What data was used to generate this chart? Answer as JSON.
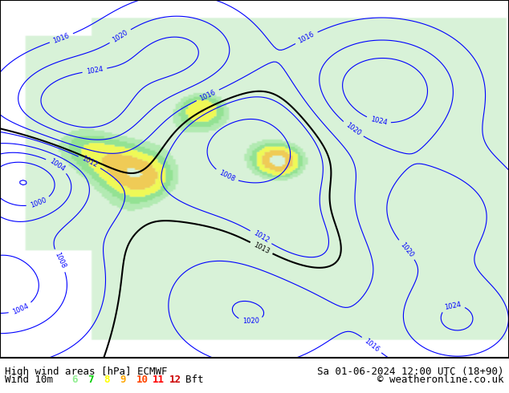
{
  "title_left": "High wind areas [hPa] ECMWF",
  "title_right": "Sa 01-06-2024 12:00 UTC (18+90)",
  "subtitle_left": "Wind 10m",
  "subtitle_right": "© weatheronline.co.uk",
  "legend_values": [
    "6",
    "7",
    "8",
    "9",
    "10",
    "11",
    "12"
  ],
  "legend_label": "Bft",
  "legend_colors": [
    "#90ee90",
    "#00cc00",
    "#ffff00",
    "#ffa500",
    "#ff4500",
    "#ff0000",
    "#cc0000"
  ],
  "bg_color": "#ffffff",
  "map_bg": "#ffffff",
  "land_color": "#d8f0d8",
  "water_color": "#ffffff",
  "isobar_color_blue": "#0000ff",
  "isobar_color_red": "#ff0000",
  "isobar_color_black": "#000000",
  "figsize": [
    6.34,
    4.9
  ],
  "dpi": 100,
  "bottom_bar_color": "#ffffff",
  "border_color": "#000000",
  "font_size_title": 9,
  "font_size_legend": 9
}
